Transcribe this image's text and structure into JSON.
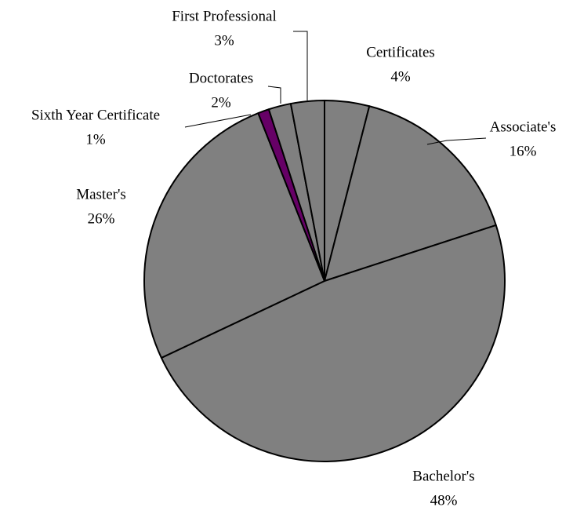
{
  "chart_data": {
    "type": "pie",
    "categories": [
      "Certificates",
      "Associate's",
      "Bachelor's",
      "Master's",
      "Sixth Year Certificate",
      "Doctorates",
      "First Professional"
    ],
    "values": [
      4,
      16,
      48,
      26,
      1,
      2,
      3
    ],
    "value_labels": [
      "4%",
      "16%",
      "48%",
      "26%",
      "1%",
      "2%",
      "3%"
    ],
    "colors": [
      "#808080",
      "#808080",
      "#808080",
      "#808080",
      "#660066",
      "#808080",
      "#808080"
    ]
  }
}
